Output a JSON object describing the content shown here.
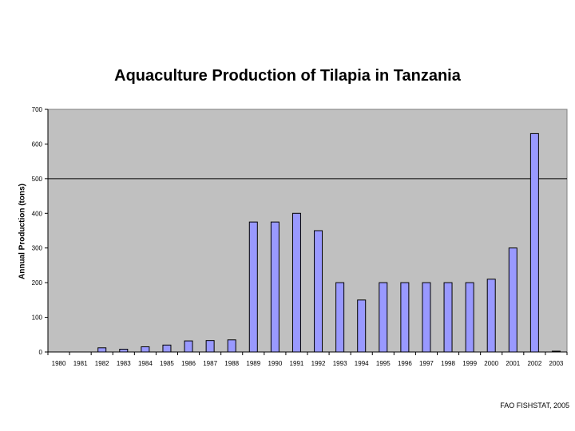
{
  "chart_data": {
    "type": "bar",
    "title": "Aquaculture Production of Tilapia in Tanzania",
    "xlabel": "",
    "ylabel": "Annual Production (tons)",
    "ylim": [
      0,
      700
    ],
    "yticks": [
      0,
      100,
      200,
      300,
      400,
      500,
      600,
      700
    ],
    "categories": [
      "1980",
      "1981",
      "1982",
      "1983",
      "1984",
      "1985",
      "1986",
      "1987",
      "1988",
      "1989",
      "1990",
      "1991",
      "1992",
      "1993",
      "1994",
      "1995",
      "1996",
      "1997",
      "1998",
      "1999",
      "2000",
      "2001",
      "2002",
      "2003"
    ],
    "values": [
      0,
      0,
      12,
      8,
      15,
      20,
      32,
      33,
      35,
      375,
      375,
      400,
      350,
      200,
      150,
      200,
      200,
      200,
      200,
      200,
      210,
      300,
      630,
      2
    ],
    "grid": "single horizontal line at 500",
    "colors": {
      "plot_bg": "#c0c0c0",
      "bar_fill": "#9999ff",
      "bar_stroke": "#000000"
    }
  },
  "source_note": "FAO FISHSTAT, 2005"
}
